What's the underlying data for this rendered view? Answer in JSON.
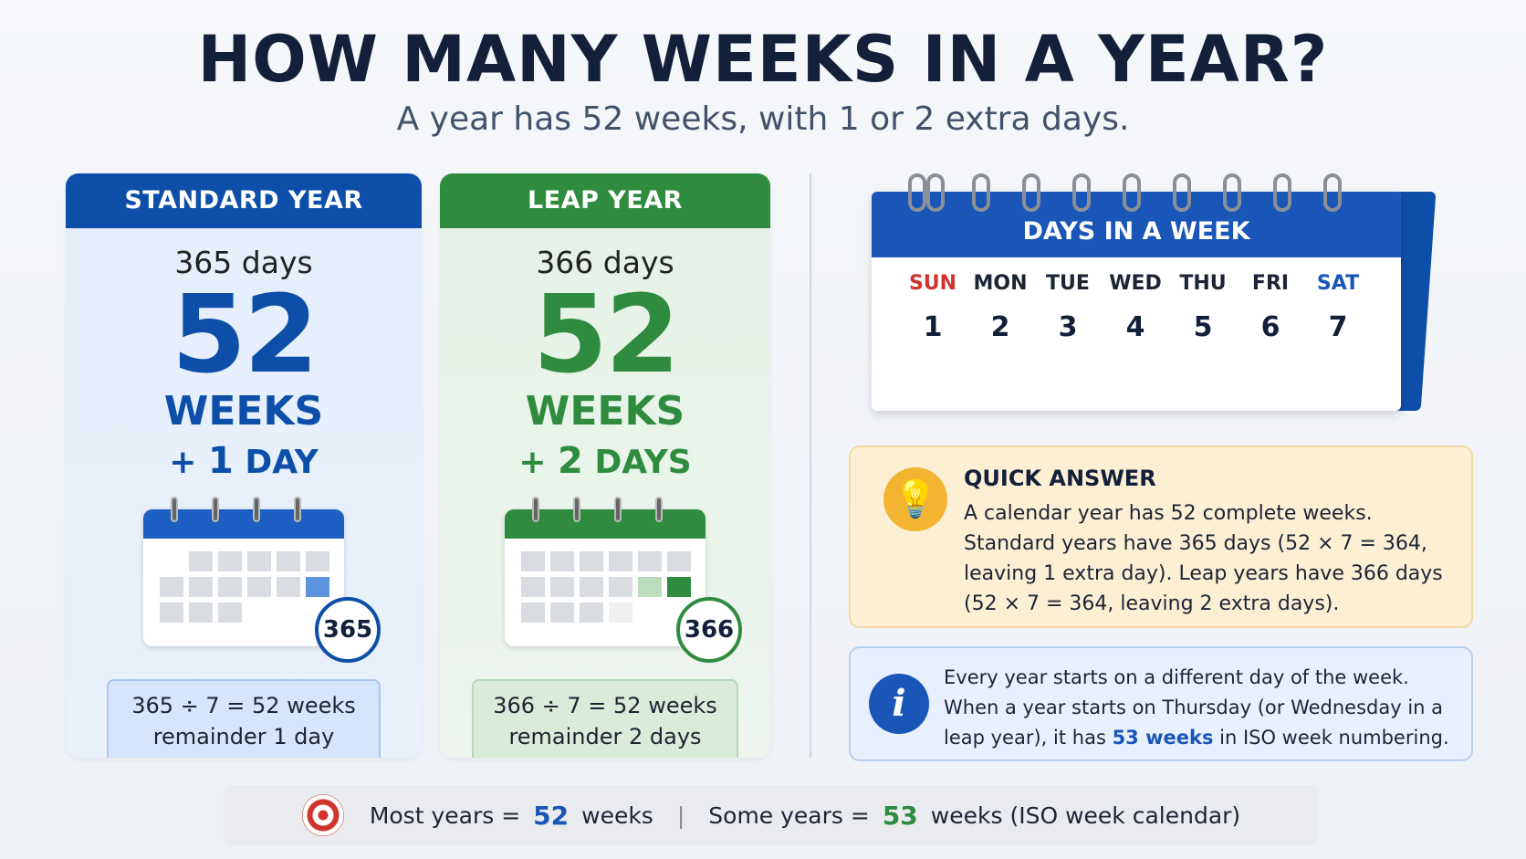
{
  "header": {
    "title": "HOW MANY WEEKS IN A YEAR?",
    "subtitle": "A year has 52 weeks, with 1 or 2 extra days."
  },
  "standard": {
    "heading": "STANDARD YEAR",
    "days": "365 days",
    "weeks_number": "52",
    "weeks_label": "WEEKS",
    "extra_prefix": "+ ",
    "extra_number": "1",
    "extra_unit": " DAY",
    "badge": "365",
    "calc_line1": "365 ÷ 7 = 52 weeks",
    "calc_line2": "remainder 1 day",
    "color": "#0d4fa8"
  },
  "leap": {
    "heading": "LEAP YEAR",
    "days": "366 days",
    "weeks_number": "52",
    "weeks_label": "WEEKS",
    "extra_prefix": "+ ",
    "extra_number": "2",
    "extra_unit": " DAYS",
    "badge": "366",
    "calc_line1": "366 ÷ 7 = 52 weeks",
    "calc_line2": "remainder 2 days",
    "color": "#2f8c3f"
  },
  "week_calendar": {
    "title": "DAYS IN A WEEK",
    "days": [
      {
        "name": "SUN",
        "num": "1"
      },
      {
        "name": "MON",
        "num": "2"
      },
      {
        "name": "TUE",
        "num": "3"
      },
      {
        "name": "WED",
        "num": "4"
      },
      {
        "name": "THU",
        "num": "5"
      },
      {
        "name": "FRI",
        "num": "6"
      },
      {
        "name": "SAT",
        "num": "7"
      }
    ]
  },
  "quick_answer": {
    "heading": "QUICK ANSWER",
    "text": "A calendar year has 52 complete weeks. Standard years have 365 days (52 × 7 = 364, leaving 1 extra day). Leap years have 366 days (52 × 7 = 364, leaving 2 extra days).",
    "icon": "lightbulb-icon"
  },
  "info": {
    "text_before": "Every year starts on a different day of the week. When a year starts on Thursday (or Wednesday in a leap year), it has ",
    "highlight": "53 weeks",
    "text_after": " in ISO week numbering.",
    "icon": "info-icon"
  },
  "footer": {
    "most_label": "Most years = ",
    "most_value": "52",
    "most_unit": " weeks",
    "separator": "|",
    "some_label": "Some years = ",
    "some_value": "53",
    "some_unit": " weeks (ISO week calendar)",
    "icon": "target-icon"
  }
}
